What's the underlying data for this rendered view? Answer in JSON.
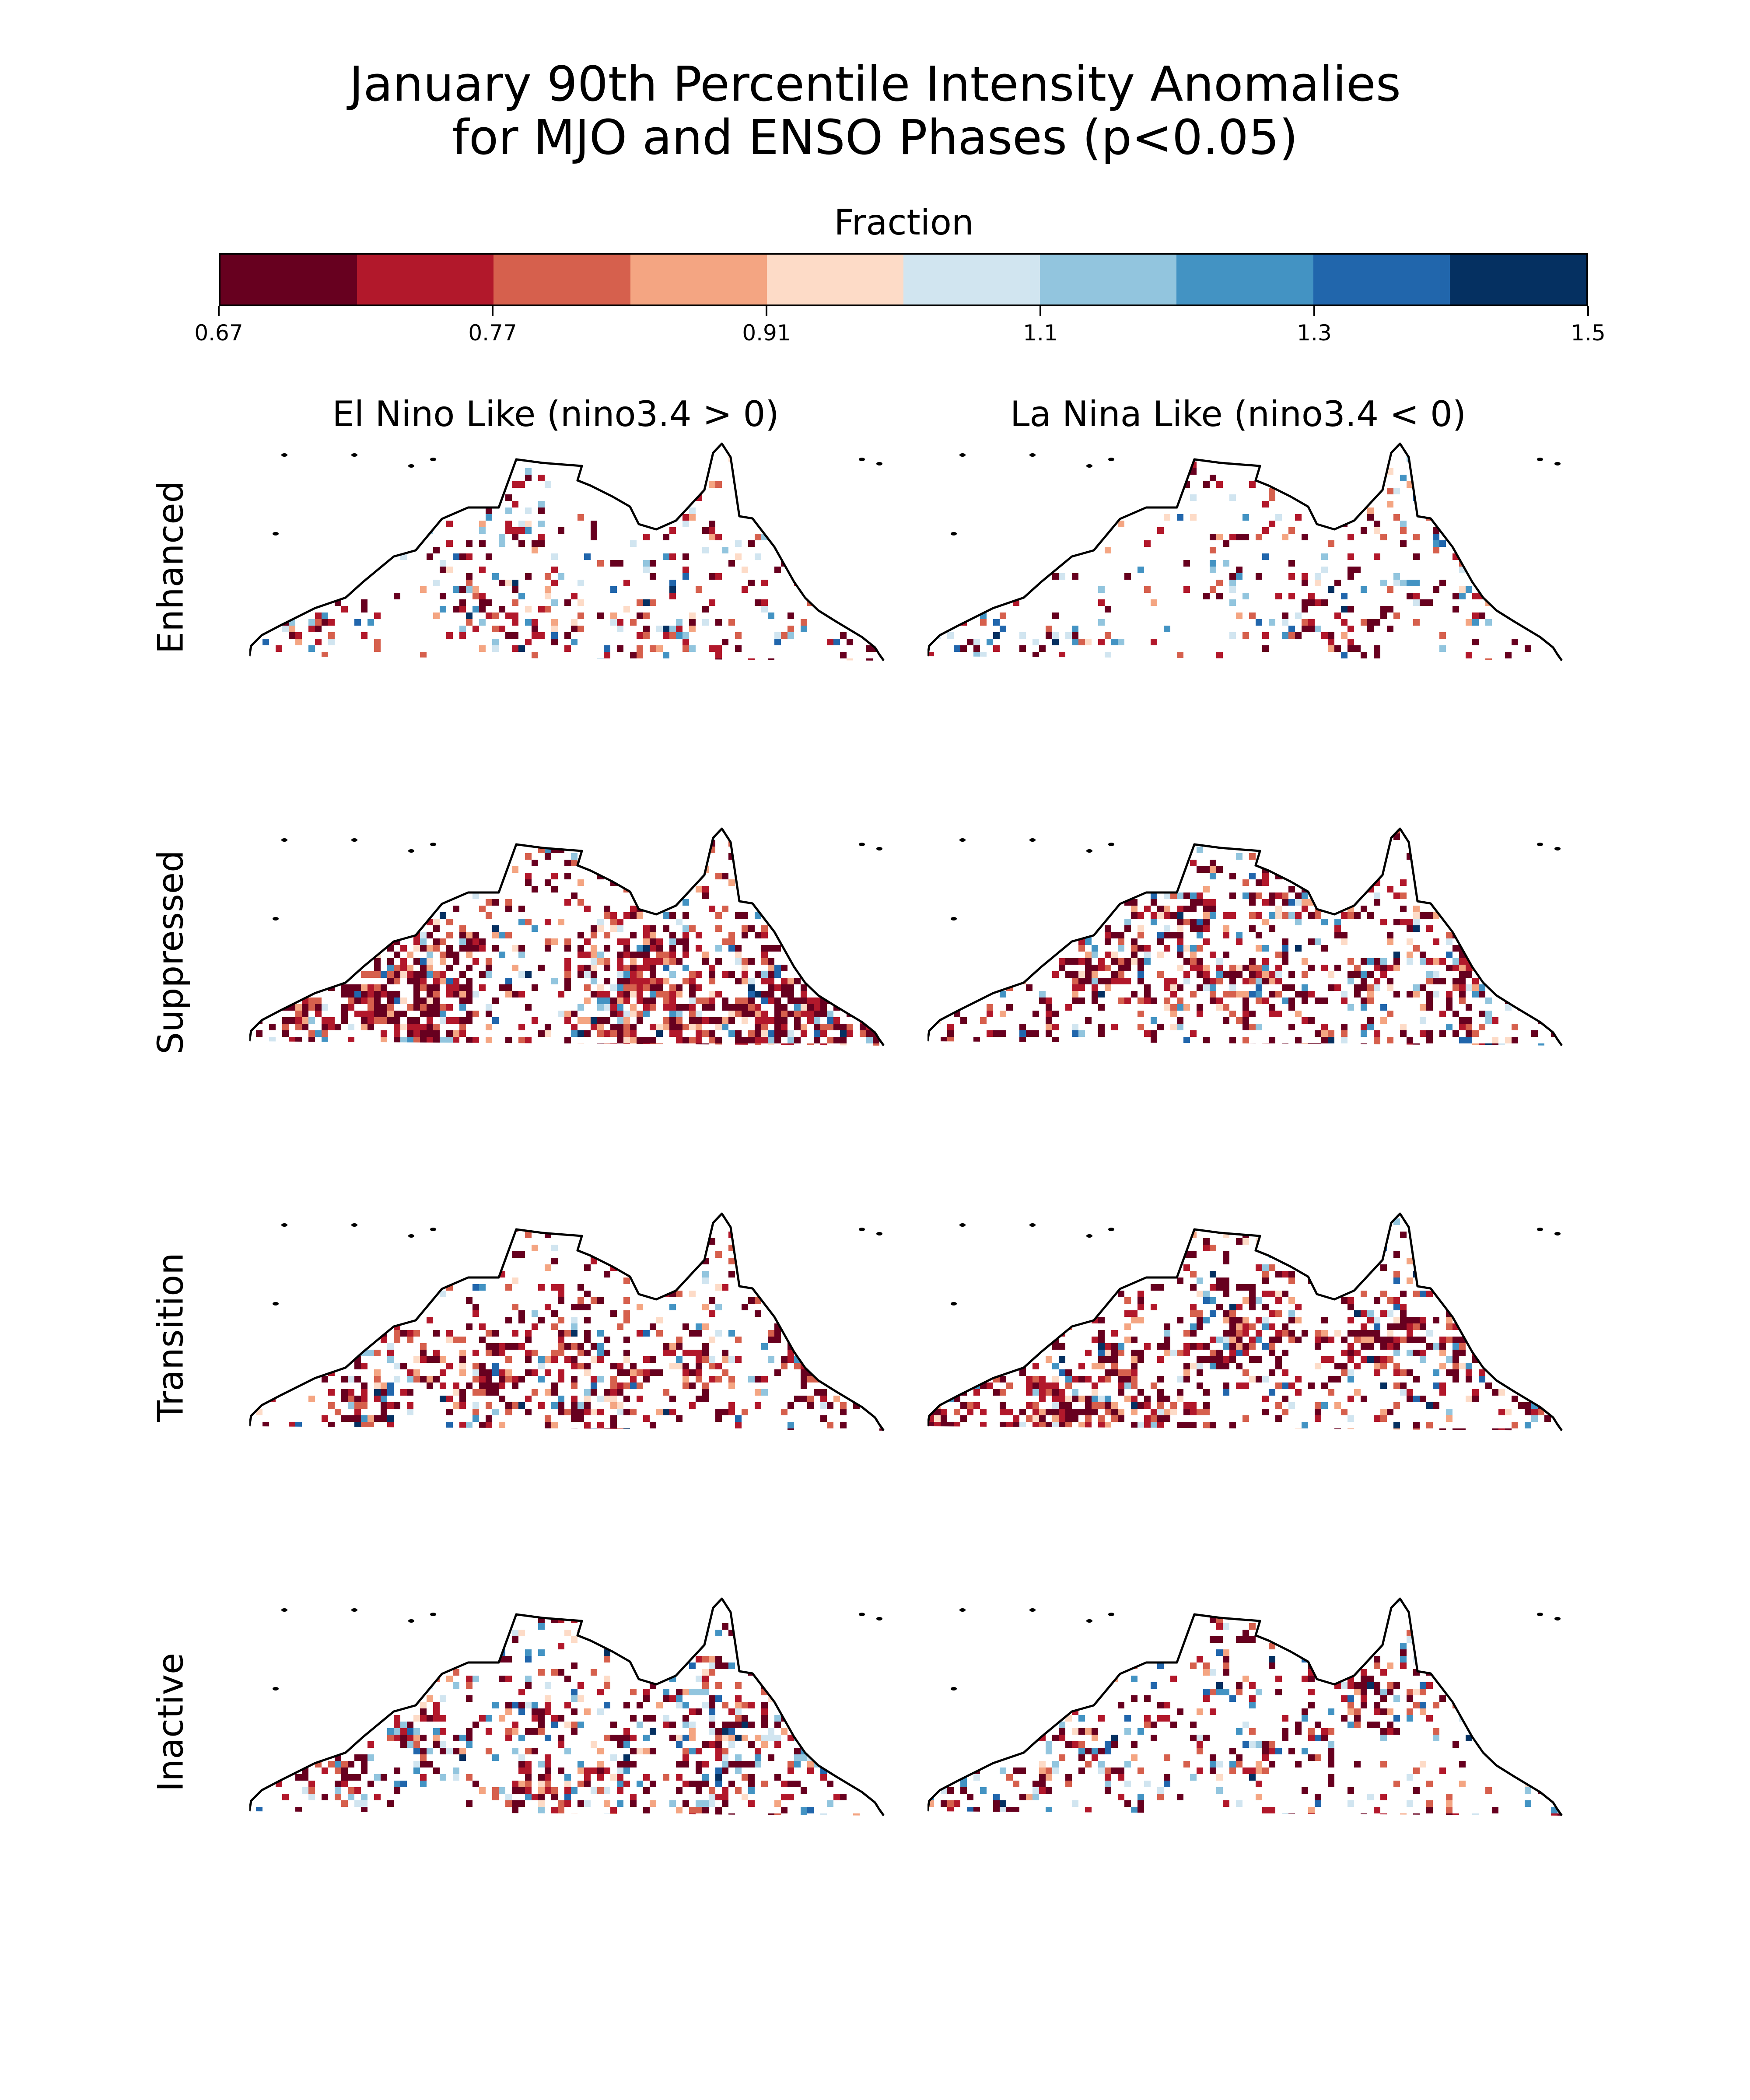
{
  "title": {
    "line1": "January 90th Percentile Intensity Anomalies",
    "line2": "for MJO and ENSO Phases (p<0.05)"
  },
  "colorbar": {
    "label": "Fraction",
    "colors": [
      "#67001f",
      "#b2182b",
      "#d6604d",
      "#f4a582",
      "#fddbc7",
      "#d1e5f0",
      "#92c5de",
      "#4393c3",
      "#2166ac",
      "#053061"
    ],
    "ticks": [
      {
        "value": 0.67,
        "label": "0.67"
      },
      {
        "value": 0.77,
        "label": "0.77"
      },
      {
        "value": 0.91,
        "label": "0.91"
      },
      {
        "value": 1.1,
        "label": "1.1"
      },
      {
        "value": 1.3,
        "label": "1.3"
      },
      {
        "value": 1.5,
        "label": "1.5"
      }
    ]
  },
  "columns": [
    "El Nino Like (nino3.4 > 0)",
    "La Nina Like (nino3.4 < 0)"
  ],
  "rows": [
    "Enhanced",
    "Suppressed",
    "Transition",
    "Inactive"
  ],
  "map_region": "Northern Australia",
  "colors": {
    "coastline": "#000000",
    "background": "#ffffff"
  }
}
